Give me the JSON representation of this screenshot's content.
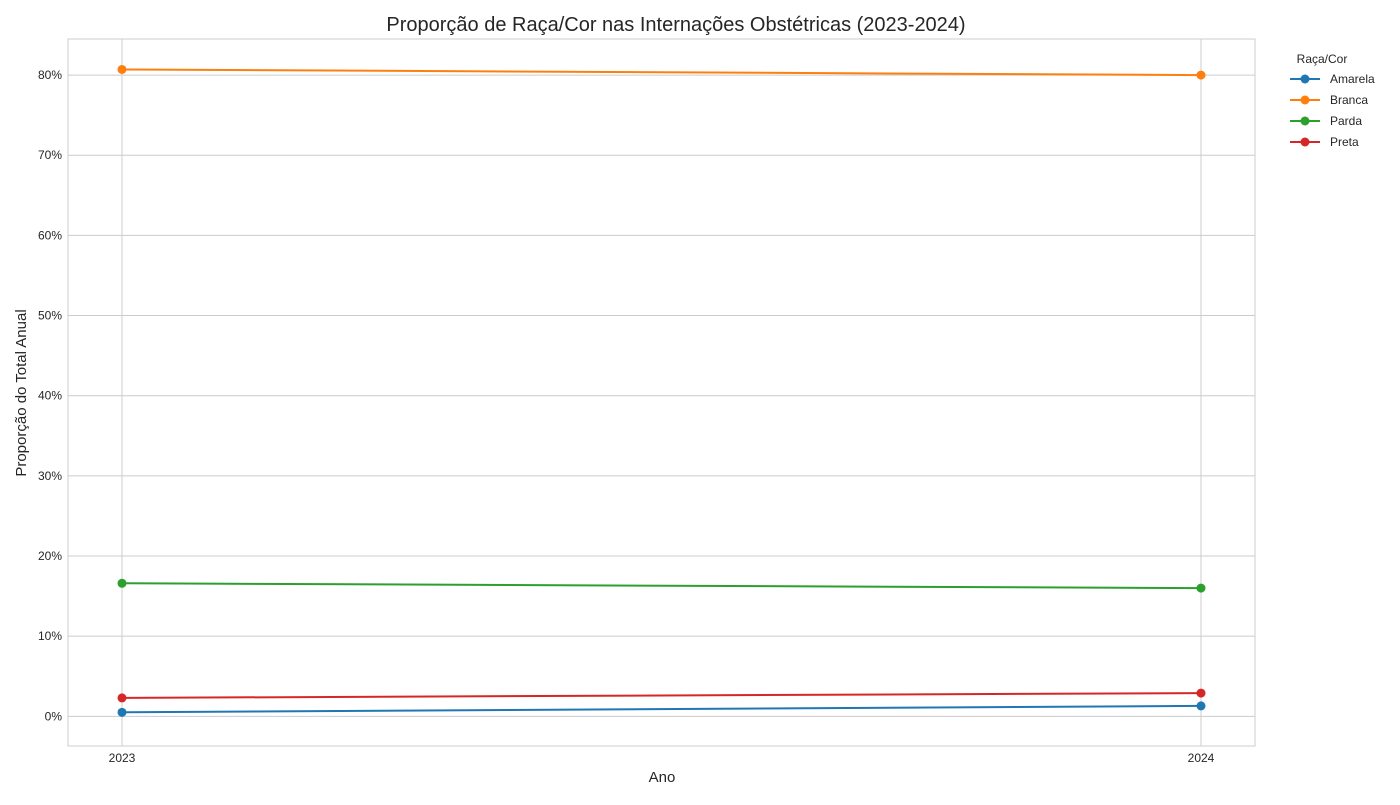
{
  "chart_data": {
    "type": "line",
    "title": "Proporção de Raça/Cor nas Internações Obstétricas (2023-2024)",
    "xlabel": "Ano",
    "ylabel": "Proporção do Total Anual",
    "x": [
      "2023",
      "2024"
    ],
    "ylim": [
      -0.037,
      0.845
    ],
    "y_ticks": [
      {
        "value": 0.0,
        "label": "0%"
      },
      {
        "value": 0.1,
        "label": "10%"
      },
      {
        "value": 0.2,
        "label": "20%"
      },
      {
        "value": 0.3,
        "label": "30%"
      },
      {
        "value": 0.4,
        "label": "40%"
      },
      {
        "value": 0.5,
        "label": "50%"
      },
      {
        "value": 0.6,
        "label": "60%"
      },
      {
        "value": 0.7,
        "label": "70%"
      },
      {
        "value": 0.8,
        "label": "80%"
      }
    ],
    "grid": true,
    "legend": {
      "title": "Raça/Cor",
      "placement": "outside-top-right"
    },
    "series": [
      {
        "name": "Amarela",
        "color": "#1f77b4",
        "values": [
          0.005,
          0.013
        ]
      },
      {
        "name": "Branca",
        "color": "#ff7f0e",
        "values": [
          0.807,
          0.8
        ]
      },
      {
        "name": "Parda",
        "color": "#2ca02c",
        "values": [
          0.166,
          0.16
        ]
      },
      {
        "name": "Preta",
        "color": "#d62728",
        "values": [
          0.023,
          0.029
        ]
      }
    ]
  }
}
